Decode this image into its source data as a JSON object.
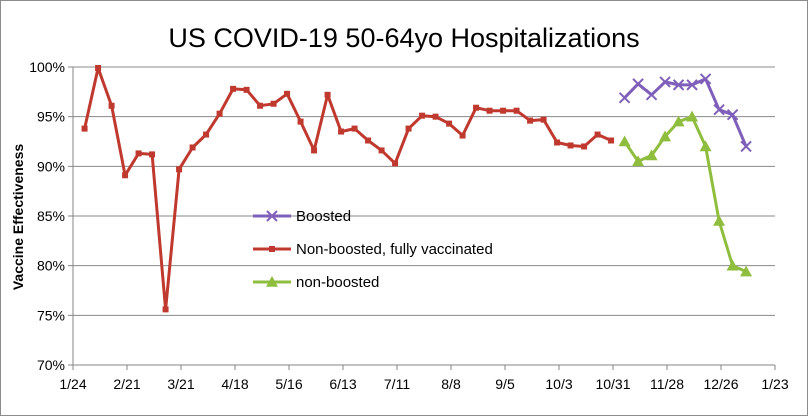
{
  "chart_data": {
    "type": "line",
    "title": "US COVID-19 50-64yo Hospitalizations",
    "xlabel": "",
    "ylabel": "Vaccine Effectiveness",
    "x_axis": {
      "type": "date",
      "range": [
        "2021-01-24",
        "2022-01-23"
      ],
      "tick_labels": [
        "1/24",
        "2/21",
        "3/21",
        "4/18",
        "5/16",
        "6/13",
        "7/11",
        "8/8",
        "9/5",
        "10/3",
        "10/31",
        "11/28",
        "12/26",
        "1/23"
      ],
      "tick_dates": [
        "2021-01-24",
        "2021-02-21",
        "2021-03-21",
        "2021-04-18",
        "2021-05-16",
        "2021-06-13",
        "2021-07-11",
        "2021-08-08",
        "2021-09-05",
        "2021-10-03",
        "2021-10-31",
        "2021-11-28",
        "2021-12-26",
        "2022-01-23"
      ]
    },
    "y_axis": {
      "range": [
        70,
        100
      ],
      "unit": "%",
      "tick_labels": [
        "70%",
        "75%",
        "80%",
        "85%",
        "90%",
        "95%",
        "100%"
      ],
      "tick_values": [
        70,
        75,
        80,
        85,
        90,
        95,
        100
      ]
    },
    "grid": {
      "horizontal": true,
      "vertical": false
    },
    "legend": {
      "position": "center"
    },
    "series": [
      {
        "name": "Boosted",
        "color": "#7f5fba",
        "marker": "x",
        "x": [
          "2021-11-06",
          "2021-11-13",
          "2021-11-20",
          "2021-11-27",
          "2021-12-04",
          "2021-12-11",
          "2021-12-18",
          "2021-12-25",
          "2022-01-01",
          "2022-01-08"
        ],
        "y": [
          96.9,
          98.3,
          97.2,
          98.5,
          98.2,
          98.2,
          98.8,
          95.7,
          95.2,
          92.0
        ]
      },
      {
        "name": "Non-boosted, fully vaccinated",
        "color": "#c0392e",
        "marker": "square",
        "x": [
          "2021-01-30",
          "2021-02-06",
          "2021-02-13",
          "2021-02-20",
          "2021-02-27",
          "2021-03-06",
          "2021-03-13",
          "2021-03-20",
          "2021-03-27",
          "2021-04-03",
          "2021-04-10",
          "2021-04-17",
          "2021-04-24",
          "2021-05-01",
          "2021-05-08",
          "2021-05-15",
          "2021-05-22",
          "2021-05-29",
          "2021-06-05",
          "2021-06-12",
          "2021-06-19",
          "2021-06-26",
          "2021-07-03",
          "2021-07-10",
          "2021-07-17",
          "2021-07-24",
          "2021-07-31",
          "2021-08-07",
          "2021-08-14",
          "2021-08-21",
          "2021-08-28",
          "2021-09-04",
          "2021-09-11",
          "2021-09-18",
          "2021-09-25",
          "2021-10-02",
          "2021-10-09",
          "2021-10-16",
          "2021-10-23",
          "2021-10-30"
        ],
        "y": [
          93.8,
          99.9,
          96.1,
          89.1,
          91.3,
          91.2,
          75.6,
          89.7,
          91.9,
          93.2,
          95.3,
          97.8,
          97.7,
          96.1,
          96.3,
          97.3,
          94.5,
          91.6,
          97.2,
          93.5,
          93.8,
          92.6,
          91.6,
          90.3,
          93.8,
          95.1,
          95.0,
          94.3,
          93.1,
          95.9,
          95.6,
          95.6,
          95.6,
          94.6,
          94.7,
          92.4,
          92.1,
          92.0,
          93.2,
          92.6
        ]
      },
      {
        "name": "non-boosted",
        "color": "#8fbd3d",
        "marker": "triangle",
        "x": [
          "2021-11-06",
          "2021-11-13",
          "2021-11-20",
          "2021-11-27",
          "2021-12-04",
          "2021-12-11",
          "2021-12-18",
          "2021-12-25",
          "2022-01-01",
          "2022-01-08"
        ],
        "y": [
          92.5,
          90.5,
          91.1,
          93.0,
          94.5,
          95.0,
          92.0,
          84.5,
          80.0,
          79.4
        ]
      }
    ]
  }
}
